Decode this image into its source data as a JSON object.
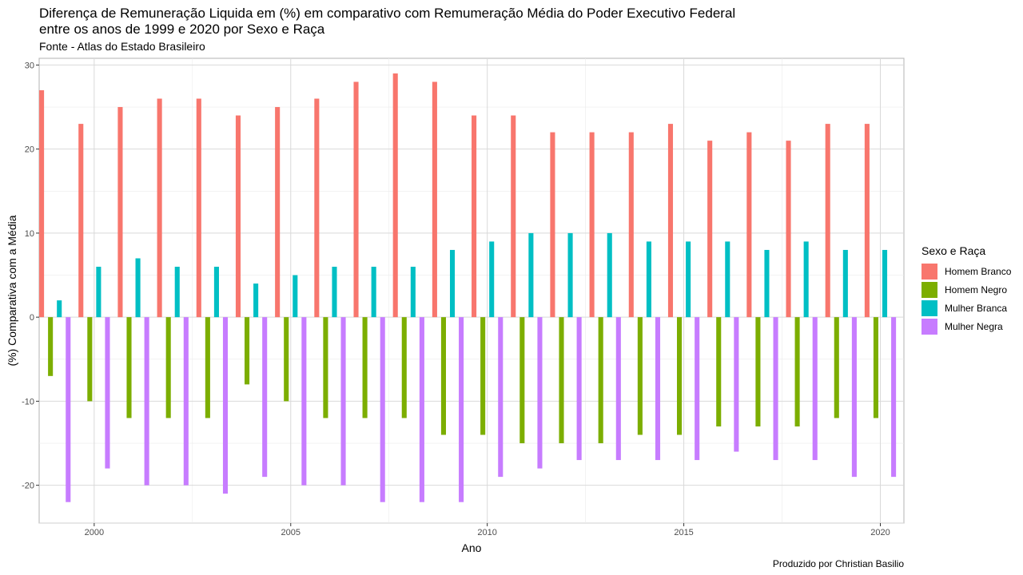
{
  "title": "Diferença de Remuneração Liquida em (%) em comparativo com Remumeração Média do Poder Executivo Federal\nentre os anos de 1999 e 2020 por Sexo e Raça",
  "subtitle": "Fonte - Atlas do Estado Brasileiro",
  "caption": "Produzido por Christian Basilio",
  "legend_title": "Sexo e Raça",
  "chart_data": {
    "type": "bar",
    "xlabel": "Ano",
    "ylabel": "(%) Comparativa com a Média",
    "x": [
      1999,
      2000,
      2001,
      2002,
      2003,
      2004,
      2005,
      2006,
      2007,
      2008,
      2009,
      2010,
      2011,
      2012,
      2013,
      2014,
      2015,
      2016,
      2017,
      2018,
      2019,
      2020
    ],
    "xticks": [
      2000,
      2005,
      2010,
      2015,
      2020
    ],
    "yticks": [
      -20,
      -10,
      0,
      10,
      20,
      30
    ],
    "ylim": [
      -24.5,
      30.8
    ],
    "xlim": [
      1998.6,
      2020.6
    ],
    "grid": true,
    "legend_position": "right",
    "series": [
      {
        "name": "Homem Branco",
        "color": "#F8766D",
        "values": [
          27,
          23,
          25,
          26,
          26,
          24,
          25,
          26,
          28,
          29,
          28,
          24,
          24,
          22,
          22,
          22,
          23,
          21,
          22,
          21,
          23,
          23
        ]
      },
      {
        "name": "Homem Negro",
        "color": "#7CAE00",
        "values": [
          -7,
          -10,
          -12,
          -12,
          -12,
          -8,
          -10,
          -12,
          -12,
          -12,
          -14,
          -14,
          -15,
          -15,
          -15,
          -14,
          -14,
          -13,
          -13,
          -13,
          -12,
          -12
        ]
      },
      {
        "name": "Mulher Branca",
        "color": "#00BFC4",
        "values": [
          2,
          6,
          7,
          6,
          6,
          4,
          5,
          6,
          6,
          6,
          8,
          9,
          10,
          10,
          10,
          9,
          9,
          9,
          8,
          9,
          8,
          8
        ]
      },
      {
        "name": "Mulher Negra",
        "color": "#C77CFF",
        "values": [
          -22,
          -18,
          -20,
          -20,
          -21,
          -19,
          -20,
          -20,
          -22,
          -22,
          -22,
          -19,
          -18,
          -17,
          -17,
          -17,
          -17,
          -16,
          -17,
          -17,
          -19,
          -19
        ]
      }
    ]
  }
}
